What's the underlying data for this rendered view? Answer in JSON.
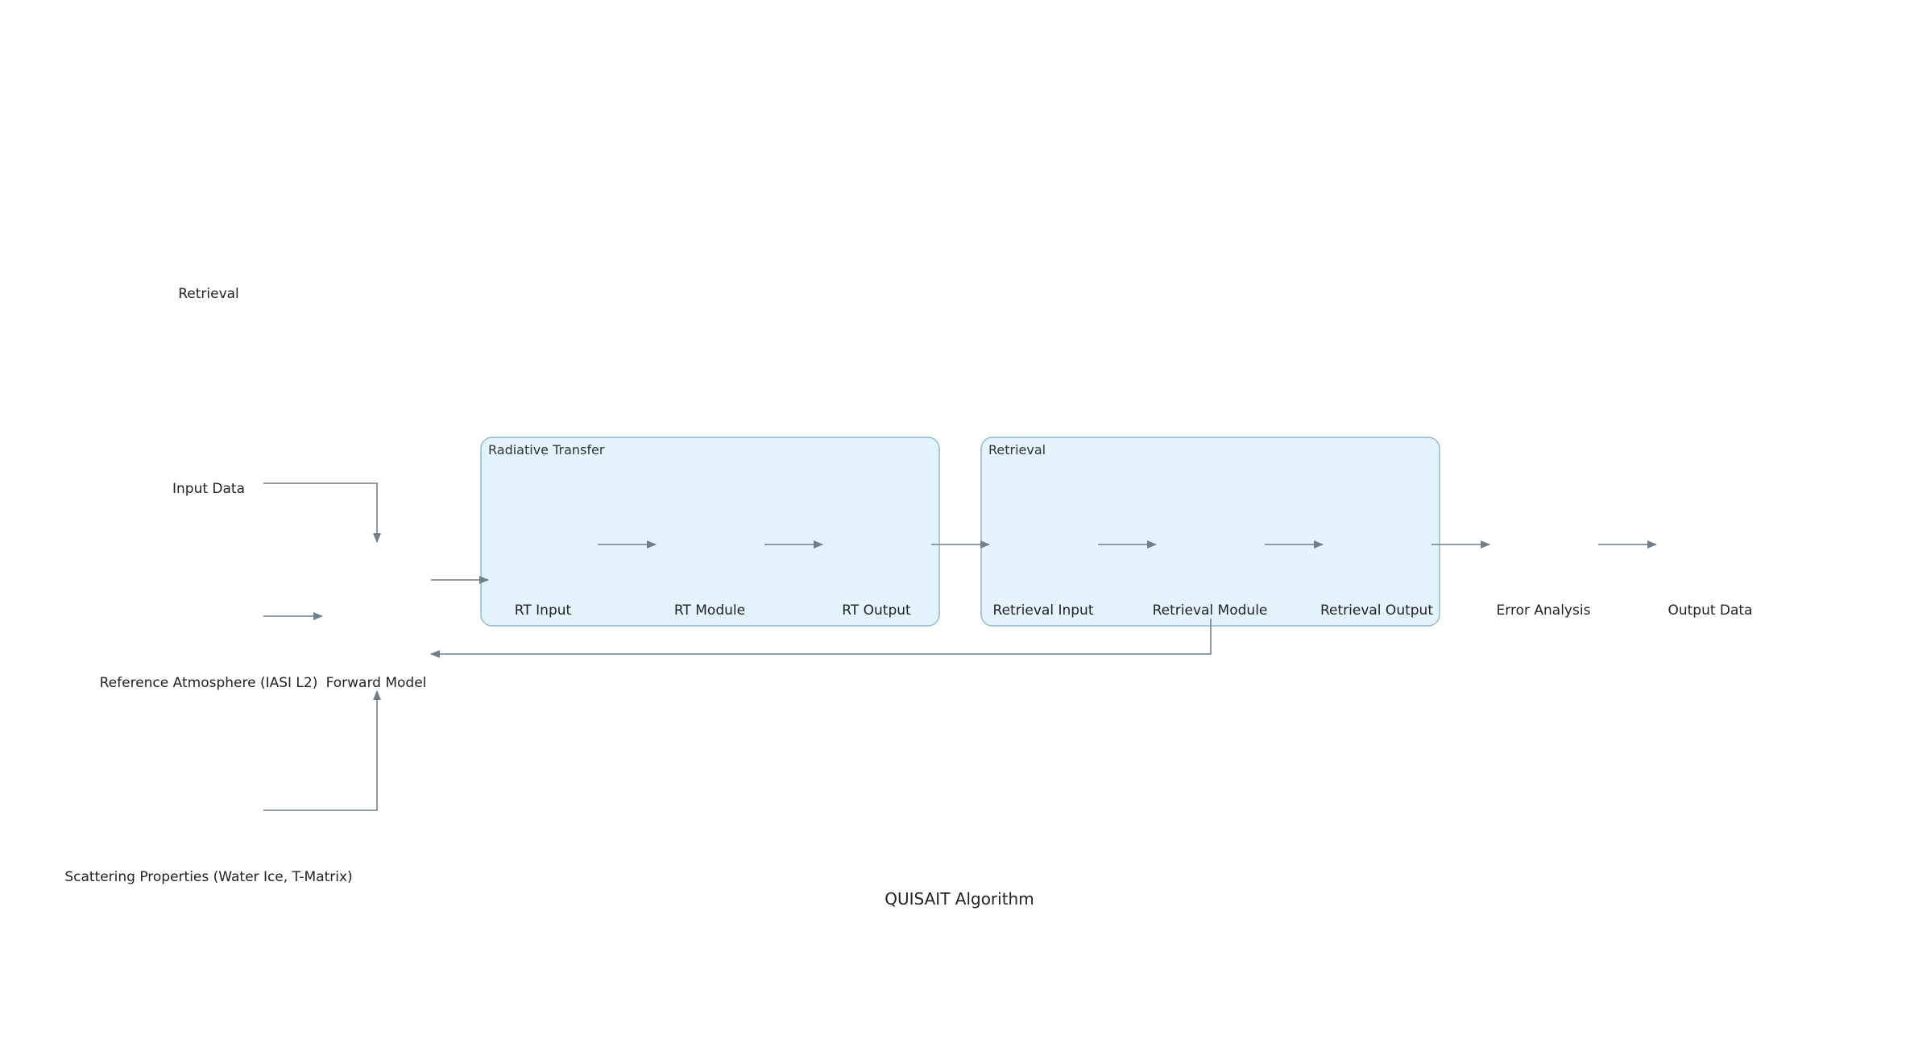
{
  "diagram": {
    "title": "QUISAIT Algorithm",
    "top_label": "Retrieval",
    "groups": {
      "radiative_transfer": {
        "label": "Radiative Transfer"
      },
      "retrieval": {
        "label": "Retrieval"
      }
    },
    "nodes": {
      "input_data": "Input Data",
      "reference_atmosphere": "Reference Atmosphere (IASI L2)",
      "scattering_properties": "Scattering Properties (Water Ice, T-Matrix)",
      "forward_model": "Forward Model",
      "rt_input": "RT Input",
      "rt_module": "RT Module",
      "rt_output": "RT Output",
      "retrieval_input": "Retrieval Input",
      "retrieval_module": "Retrieval Module",
      "retrieval_output": "Retrieval Output",
      "error_analysis": "Error Analysis",
      "output_data": "Output Data"
    },
    "colors": {
      "group_fill": "#e3f4fc",
      "group_stroke": "#93b8cc",
      "edge": "#6f7f8c"
    }
  }
}
